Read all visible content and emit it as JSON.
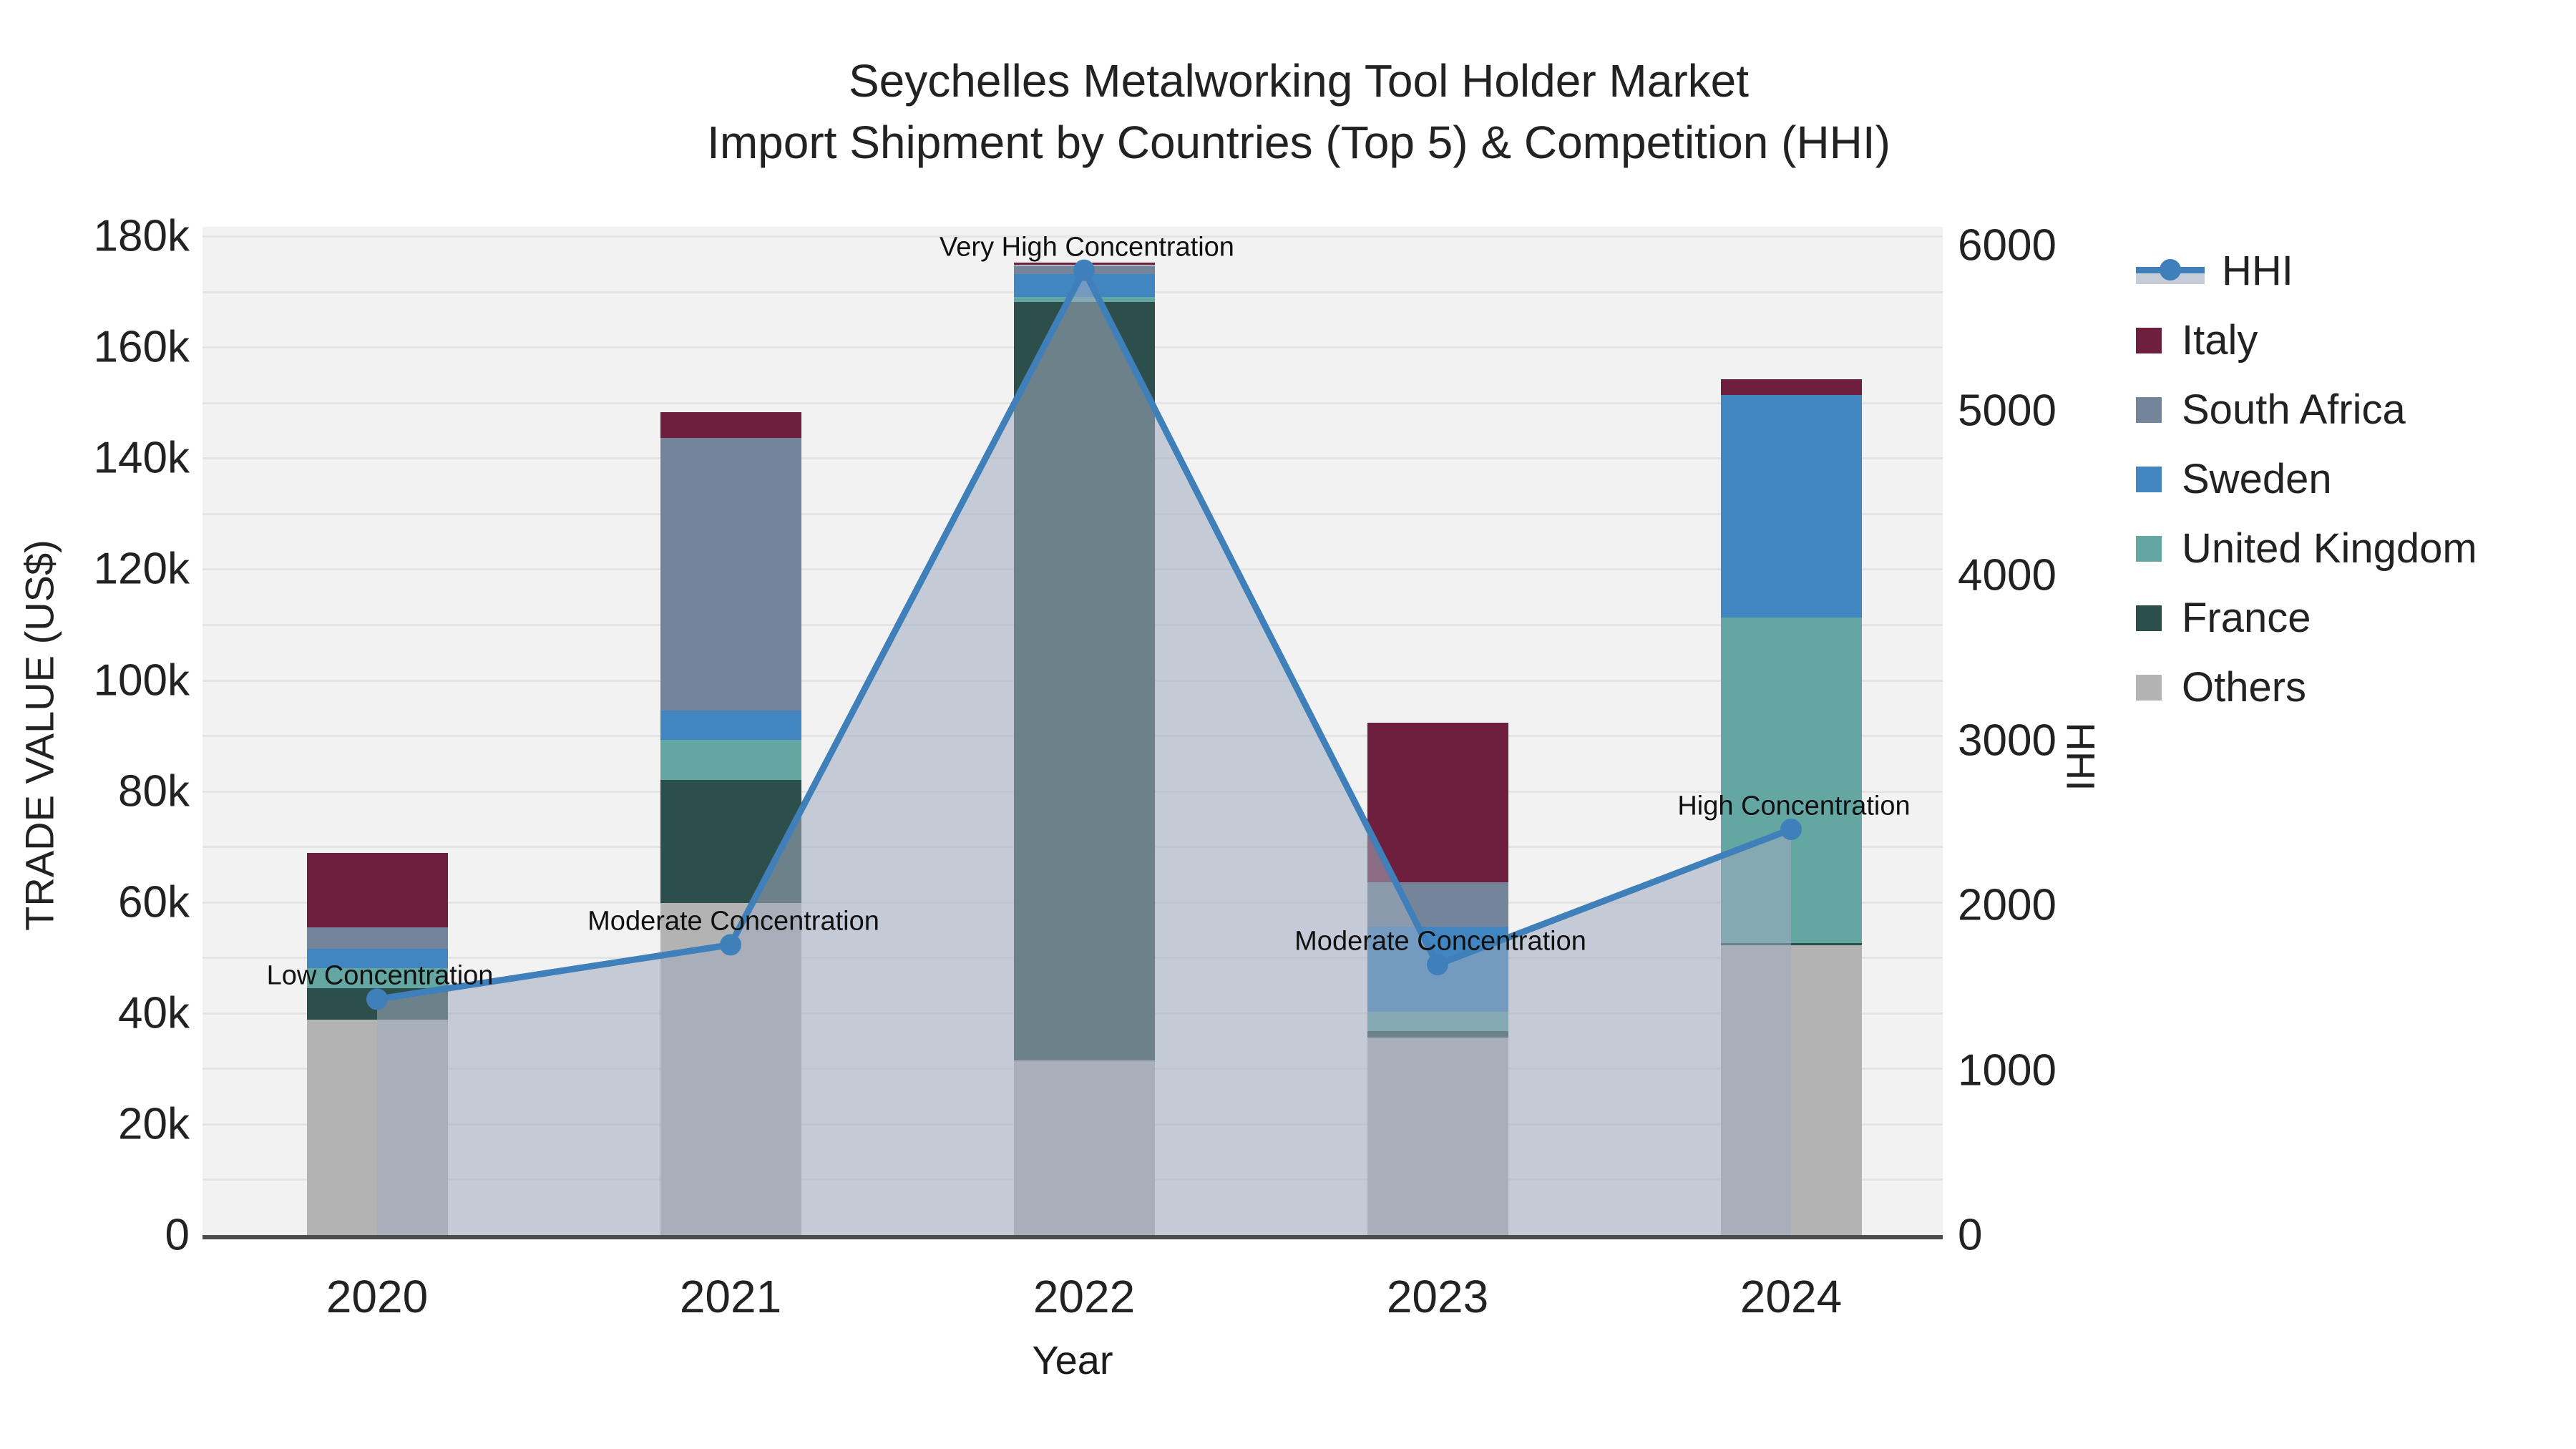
{
  "title": {
    "line1": "Seychelles Metalworking Tool Holder Market",
    "line2": "Import Shipment by Countries (Top 5) & Competition (HHI)"
  },
  "axes": {
    "x_title": "Year",
    "y_left_title": "TRADE VALUE (US$)",
    "y_right_title": "HHI"
  },
  "legend": {
    "items": [
      {
        "label": "HHI",
        "type": "line",
        "color": "#4080ba"
      },
      {
        "label": "Italy",
        "type": "swatch",
        "color": "#6f1f3e"
      },
      {
        "label": "South Africa",
        "type": "swatch",
        "color": "#74859a"
      },
      {
        "label": "Sweden",
        "type": "swatch",
        "color": "#4286c1"
      },
      {
        "label": "United Kingdom",
        "type": "swatch",
        "color": "#63a6a2"
      },
      {
        "label": "France",
        "type": "swatch",
        "color": "#2d4f4b"
      },
      {
        "label": "Others",
        "type": "swatch",
        "color": "#b3b3b3"
      }
    ]
  },
  "chart_data": {
    "type": "combo: stacked-bar (left axis) + line-with-area (right axis)",
    "categories": [
      "2020",
      "2021",
      "2022",
      "2023",
      "2024"
    ],
    "unit": "thousand US$",
    "stack_order_bottom_to_top": [
      "Others",
      "France",
      "United Kingdom",
      "Sweden",
      "South Africa",
      "Italy"
    ],
    "series": [
      {
        "name": "Others",
        "color": "#b3b3b3",
        "values": [
          38.8,
          59.8,
          31.5,
          35.6,
          52.2
        ]
      },
      {
        "name": "France",
        "color": "#2d4f4b",
        "values": [
          5.7,
          22.2,
          136.6,
          1.1,
          0.4
        ]
      },
      {
        "name": "United Kingdom",
        "color": "#63a6a2",
        "values": [
          3.6,
          7.2,
          0.9,
          3.5,
          58.7
        ]
      },
      {
        "name": "Sweden",
        "color": "#4286c1",
        "values": [
          3.5,
          5.3,
          4.2,
          15.4,
          40.1
        ]
      },
      {
        "name": "South Africa",
        "color": "#74859a",
        "values": [
          3.8,
          49.2,
          1.6,
          8.0,
          0.0
        ]
      },
      {
        "name": "Italy",
        "color": "#6f1f3e",
        "values": [
          13.4,
          4.6,
          0.4,
          28.7,
          2.8
        ]
      }
    ],
    "bar_totals": [
      68.8,
      148.3,
      175.2,
      92.3,
      154.2
    ],
    "hhi": {
      "name": "HHI",
      "axis": "right",
      "line_color": "#4080ba",
      "area_fill": "rgba(160,172,192,0.55)",
      "values": [
        1430,
        1760,
        5850,
        1640,
        2460
      ]
    },
    "annotations": [
      {
        "year": "2020",
        "text": "Low Concentration"
      },
      {
        "year": "2021",
        "text": "Moderate Concentration"
      },
      {
        "year": "2022",
        "text": "Very High Concentration"
      },
      {
        "year": "2023",
        "text": "Moderate Concentration"
      },
      {
        "year": "2024",
        "text": "High Concentration"
      }
    ],
    "y_left": {
      "label": "TRADE VALUE (US$)",
      "range_k": [
        0,
        181.7
      ],
      "tick_step_k": 20,
      "grid_step_k": 10,
      "tick_labels": [
        "0",
        "20k",
        "40k",
        "60k",
        "80k",
        "100k",
        "120k",
        "140k",
        "160k",
        "180k"
      ]
    },
    "y_right": {
      "label": "HHI",
      "range": [
        0,
        6113
      ],
      "tick_step": 1000,
      "tick_labels": [
        "0",
        "1000",
        "2000",
        "3000",
        "4000",
        "5000",
        "6000"
      ]
    },
    "xlabel": "Year",
    "legend_position": "right",
    "plot_background": "#f2f2f2",
    "grid_on": true
  },
  "colors": {
    "plot_bg": "#f2f2f2",
    "gridline": "#e4e4e4",
    "axis_line": "#4c4c4c",
    "text": "#222222"
  }
}
